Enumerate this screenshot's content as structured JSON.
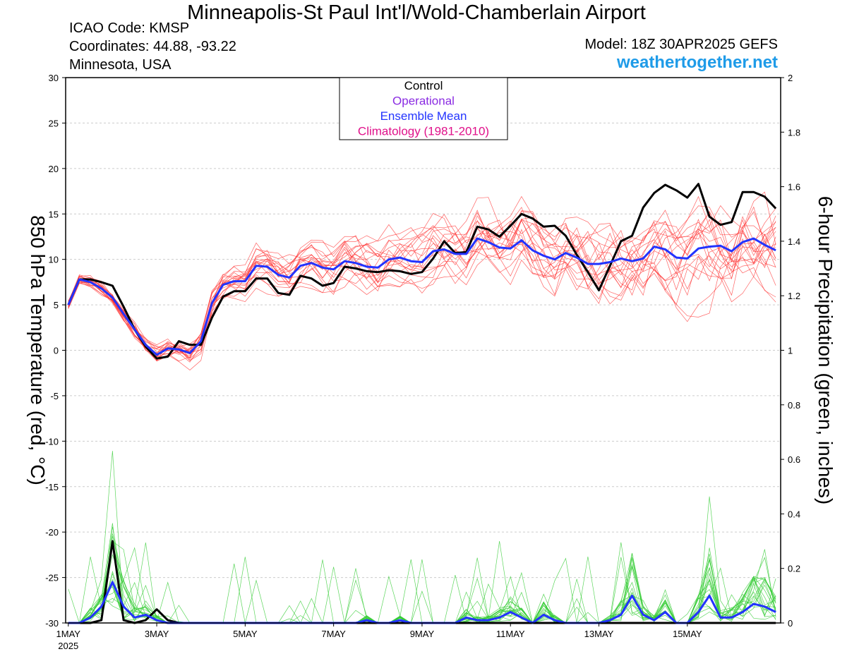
{
  "header": {
    "title": "Minneapolis-St Paul Int'l/Wold-Chamberlain Airport",
    "icao": "ICAO Code: KMSP",
    "coordinates": "Coordinates: 44.88, -93.22",
    "location": "Minnesota, USA",
    "model": "Model: 18Z 30APR2025 GEFS",
    "site": "weathertogether.net"
  },
  "colors": {
    "members_temp": "#ff3030",
    "members_precip": "#33cc33",
    "control": "#000000",
    "operational": "#8a2be2",
    "ensemble_mean": "#2233ff",
    "climatology": "#e0108a"
  },
  "chart_data": {
    "type": "line",
    "x_unit": "days since 1MAY 2025 00Z",
    "x_ticks": [
      {
        "x": 0,
        "label": "1MAY",
        "sub": "2025"
      },
      {
        "x": 2,
        "label": "3MAY"
      },
      {
        "x": 4,
        "label": "5MAY"
      },
      {
        "x": 6,
        "label": "7MAY"
      },
      {
        "x": 8,
        "label": "9MAY"
      },
      {
        "x": 10,
        "label": "11MAY"
      },
      {
        "x": 12,
        "label": "13MAY"
      },
      {
        "x": 14,
        "label": "15MAY"
      }
    ],
    "xlim": [
      -0.06,
      16.11
    ],
    "y_left": {
      "label": "850 hPa Temperature (red, °C)",
      "lim": [
        -30,
        30
      ],
      "ticks": [
        30,
        25,
        20,
        15,
        10,
        5,
        0,
        -5,
        -10,
        -15,
        -20,
        -25,
        -30
      ]
    },
    "y_right": {
      "label": "6-hour Precipitation (green, inches)",
      "lim": [
        0,
        2
      ],
      "ticks": [
        "2",
        "1.8",
        "1.6",
        "1.4",
        "1.2",
        "1",
        "0.8",
        "0.6",
        "0.4",
        "0.2",
        "0"
      ]
    },
    "legend": {
      "position": "top-center",
      "entries": [
        {
          "label": "Control",
          "color": "#000000"
        },
        {
          "label": "Operational",
          "color": "#8a2be2"
        },
        {
          "label": "Ensemble Mean",
          "color": "#2233ff"
        },
        {
          "label": "Climatology (1981-2010)",
          "color": "#e0108a"
        }
      ]
    },
    "series": [
      {
        "name": "Control",
        "axis": "left",
        "x_step": 0.25,
        "values": [
          5,
          7.8,
          7.8,
          7.5,
          7.1,
          4.8,
          2.3,
          0.4,
          -0.9,
          -0.7,
          1,
          0.6,
          0.6,
          3.6,
          5.9,
          6.5,
          6.5,
          7.9,
          7.9,
          6.3,
          6.1,
          8.2,
          7.9,
          7.1,
          7.4,
          9.2,
          9,
          8.7,
          8.6,
          8.8,
          8.7,
          8.4,
          8.6,
          10.1,
          12,
          10.7,
          10.8,
          13.6,
          13.3,
          12.5,
          13.7,
          15,
          14.5,
          13.6,
          13.7,
          12.6,
          10.5,
          8.6,
          6.6,
          9.3,
          12,
          12.6,
          15.7,
          17.3,
          18.2,
          17.6,
          16.8,
          18.3,
          14.7,
          13.8,
          14.1,
          17.4,
          17.4,
          16.9,
          15.6
        ]
      },
      {
        "name": "Ensemble Mean",
        "axis": "left",
        "x_step": 0.25,
        "values": [
          5,
          7.8,
          7.5,
          6.8,
          5.8,
          4,
          2.3,
          0.6,
          -0.5,
          0.2,
          0.1,
          -0.3,
          1,
          5.2,
          7.2,
          7.6,
          7.6,
          9.3,
          9.2,
          8.3,
          8,
          9.3,
          9.6,
          9.1,
          8.9,
          9.8,
          9.6,
          9.2,
          9.1,
          10,
          10.2,
          9.8,
          9.7,
          10.9,
          11.1,
          10.6,
          10.6,
          12.3,
          11.9,
          11.3,
          11.2,
          12.1,
          11,
          10.4,
          10,
          10.7,
          10.2,
          9.5,
          9.5,
          9.7,
          10.1,
          9.8,
          10.1,
          11.4,
          11.1,
          10.2,
          10.1,
          11.2,
          11.4,
          11.5,
          10.9,
          11.9,
          12.3,
          11.6,
          11
        ]
      },
      {
        "name": "Control precipitation",
        "axis": "right",
        "x_step": 0.25,
        "values": [
          0,
          0,
          0,
          0.01,
          0.3,
          0.01,
          0,
          0.01,
          0.05,
          0.01,
          0,
          0,
          0,
          0,
          0,
          0,
          0,
          0,
          0,
          0,
          0,
          0,
          0,
          0,
          0,
          0,
          0,
          0,
          0,
          0,
          0,
          0,
          0,
          0,
          0,
          0,
          0,
          0,
          0,
          0,
          0,
          0,
          0,
          0,
          0,
          0,
          0,
          0,
          0,
          0,
          0,
          0,
          0,
          0,
          0,
          0,
          0,
          0,
          0,
          0,
          0,
          0,
          0,
          0,
          0
        ]
      },
      {
        "name": "Ensemble Mean precipitation",
        "axis": "right",
        "x_step": 0.25,
        "values": [
          0,
          0,
          0.02,
          0.06,
          0.15,
          0.06,
          0.02,
          0.03,
          0.01,
          0,
          0,
          0,
          0,
          0,
          0,
          0,
          0,
          0,
          0,
          0,
          0,
          0,
          0,
          0,
          0,
          0,
          0,
          0.01,
          0,
          0,
          0.01,
          0,
          0,
          0,
          0,
          0,
          0.02,
          0.01,
          0.01,
          0.02,
          0.04,
          0.02,
          0,
          0.03,
          0.01,
          0,
          0,
          0,
          0,
          0.01,
          0.03,
          0.1,
          0.03,
          0.01,
          0.04,
          0,
          0,
          0.04,
          0.1,
          0.02,
          0.02,
          0.04,
          0.07,
          0.06,
          0.04
        ]
      }
    ]
  }
}
